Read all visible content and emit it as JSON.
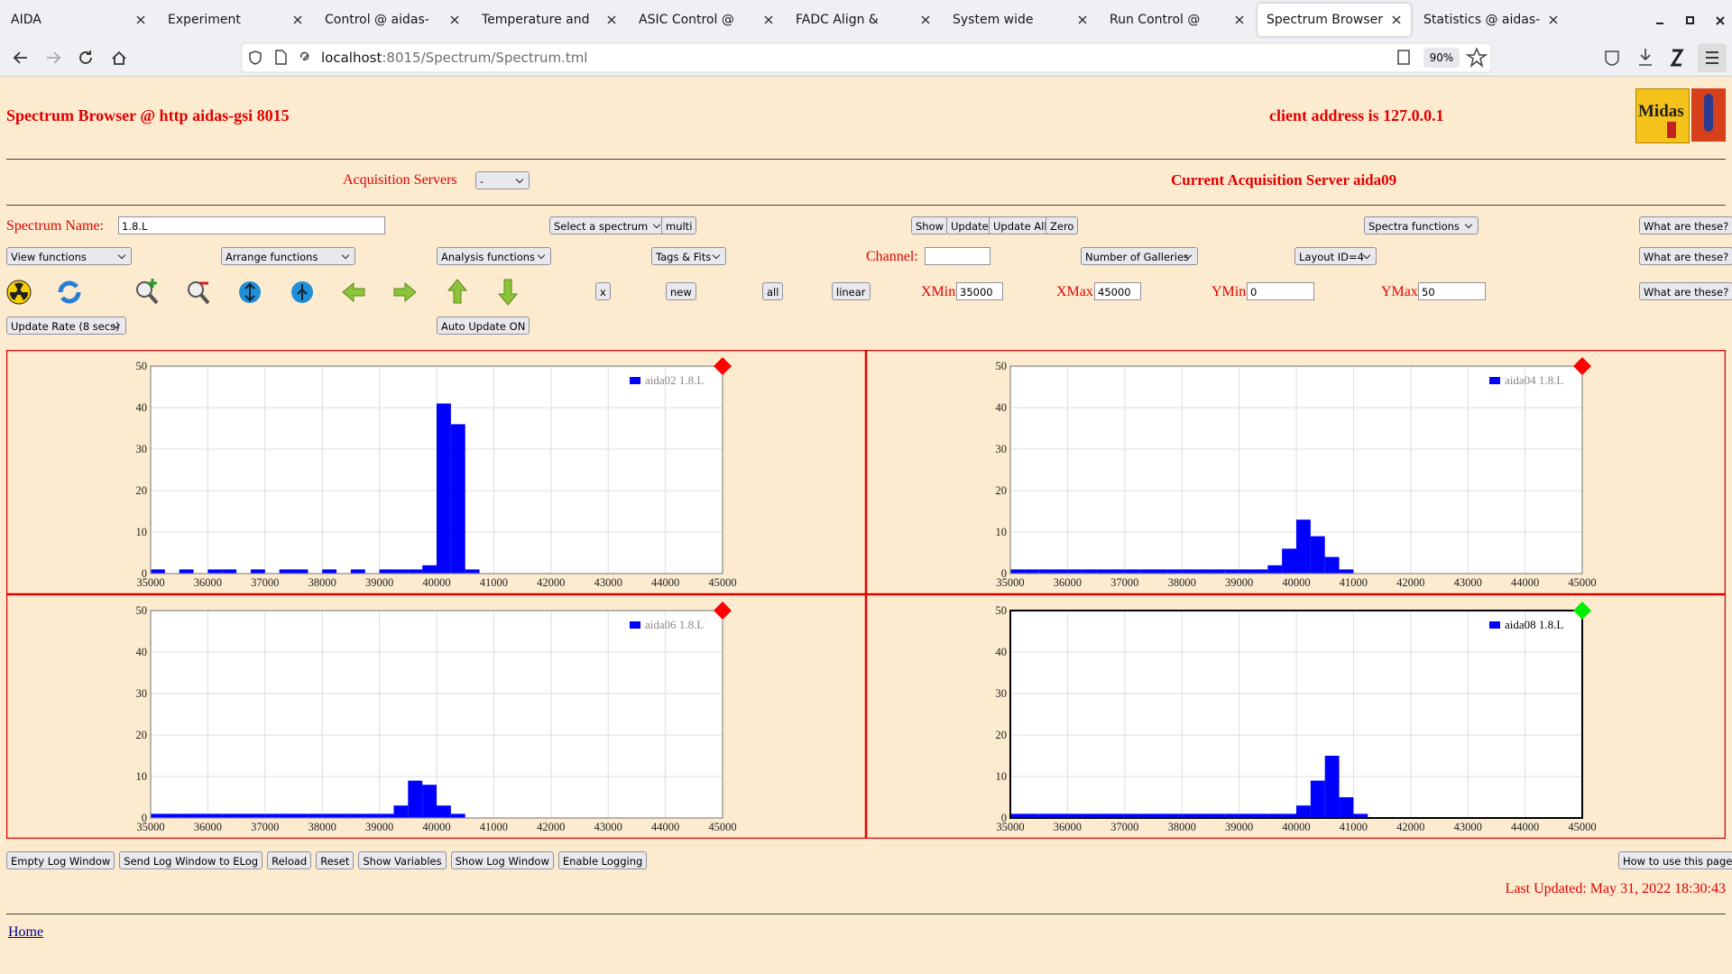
{
  "browser": {
    "tabs": [
      "AIDA",
      "Experiment Control @",
      "Control @ aidas-gsi",
      "Temperature and stat",
      "ASIC Control @ aida",
      "FADC Align & Contro",
      "System wide Checks",
      "Run Control @ aidas-",
      "Spectrum Browser @",
      "Statistics @ aidas-gsi"
    ],
    "active_tab": 8,
    "url_host": "localhost",
    "url_path": ":8015/Spectrum/Spectrum.tml",
    "zoom": "90%"
  },
  "header": {
    "title": "Spectrum Browser @ http aidas-gsi 8015",
    "client": "client address is 127.0.0.1",
    "logo": "Midas"
  },
  "servers": {
    "label": "Acquisition Servers",
    "selected": "-",
    "current": "Current Acquisition Server aida09"
  },
  "controls": {
    "spectrum_name_label": "Spectrum Name:",
    "spectrum_name": "1.8.L",
    "select_spectrum": "Select a spectrum",
    "multi": "multi",
    "show": "Show",
    "update": "Update",
    "update_all": "Update All",
    "zero": "Zero",
    "spectra_functions": "Spectra functions",
    "help": [
      "What are these?",
      "What are these?",
      "What are these?"
    ],
    "view_functions": "View functions",
    "arrange_functions": "Arrange functions",
    "analysis_functions": "Analysis functions",
    "tags_fits": "Tags & Fits",
    "channel_label": "Channel:",
    "galleries": "Number of Galleries",
    "layout": "Layout ID=4",
    "x_button": "x",
    "new": "new",
    "all": "all",
    "linear": "linear",
    "xmin_label": "XMin",
    "xmin": "35000",
    "xmax_label": "XMax",
    "xmax": "45000",
    "ymin_label": "YMin",
    "ymin": "0",
    "ymax_label": "YMax",
    "ymax": "50",
    "update_rate": "Update Rate (8 secs)",
    "auto_update": "Auto Update ON"
  },
  "chart_data": [
    {
      "type": "histogram",
      "bins": [
        35000,
        35250,
        35500,
        35750,
        36000,
        36250,
        36500,
        36750,
        37000,
        37250,
        37500,
        37750,
        38000,
        38250,
        38500,
        38750,
        39000,
        39250,
        39500,
        39750,
        40000,
        40250,
        40500,
        40750,
        41000,
        41250,
        41500,
        41750,
        42000,
        42250,
        42500,
        42750,
        43000,
        43250,
        43500,
        43750,
        44000,
        44250,
        44500,
        44750,
        45000
      ],
      "series": [
        {
          "name": "aida02 1.8.L",
          "color": "#0000ff",
          "values": [
            1,
            0,
            1,
            0,
            1,
            1,
            0,
            1,
            0,
            1,
            1,
            0,
            1,
            0,
            1,
            0,
            1,
            1,
            1,
            2,
            41,
            36,
            1,
            0,
            0,
            0,
            0,
            0,
            0,
            0,
            0,
            0,
            0,
            0,
            0,
            0,
            0,
            0,
            0,
            0
          ]
        }
      ],
      "xlim": [
        35000,
        45000
      ],
      "ylim": [
        0,
        50
      ],
      "xticks": [
        35000,
        36000,
        37000,
        38000,
        39000,
        40000,
        41000,
        42000,
        43000,
        44000,
        45000
      ],
      "yticks": [
        0,
        10,
        20,
        30,
        40,
        50
      ],
      "grid": true,
      "legend": "upper right",
      "status_color": "#ff0000",
      "frame_color": "#888888"
    },
    {
      "type": "histogram",
      "bins": [
        35000,
        35250,
        35500,
        35750,
        36000,
        36250,
        36500,
        36750,
        37000,
        37250,
        37500,
        37750,
        38000,
        38250,
        38500,
        38750,
        39000,
        39250,
        39500,
        39750,
        40000,
        40250,
        40500,
        40750,
        41000,
        41250,
        41500,
        41750,
        42000,
        42250,
        42500,
        42750,
        43000,
        43250,
        43500,
        43750,
        44000,
        44250,
        44500,
        44750,
        45000
      ],
      "series": [
        {
          "name": "aida04 1.8.L",
          "color": "#0000ff",
          "values": [
            1,
            1,
            1,
            1,
            1,
            1,
            1,
            1,
            1,
            1,
            1,
            1,
            1,
            1,
            1,
            1,
            1,
            1,
            2,
            6,
            13,
            9,
            4,
            1,
            0,
            0,
            0,
            0,
            0,
            0,
            0,
            0,
            0,
            0,
            0,
            0,
            0,
            0,
            0,
            0
          ]
        }
      ],
      "xlim": [
        35000,
        45000
      ],
      "ylim": [
        0,
        50
      ],
      "xticks": [
        35000,
        36000,
        37000,
        38000,
        39000,
        40000,
        41000,
        42000,
        43000,
        44000,
        45000
      ],
      "yticks": [
        0,
        10,
        20,
        30,
        40,
        50
      ],
      "grid": true,
      "legend": "upper right",
      "status_color": "#ff0000",
      "frame_color": "#888888"
    },
    {
      "type": "histogram",
      "bins": [
        35000,
        35250,
        35500,
        35750,
        36000,
        36250,
        36500,
        36750,
        37000,
        37250,
        37500,
        37750,
        38000,
        38250,
        38500,
        38750,
        39000,
        39250,
        39500,
        39750,
        40000,
        40250,
        40500,
        40750,
        41000,
        41250,
        41500,
        41750,
        42000,
        42250,
        42500,
        42750,
        43000,
        43250,
        43500,
        43750,
        44000,
        44250,
        44500,
        44750,
        45000
      ],
      "series": [
        {
          "name": "aida06 1.8.L",
          "color": "#0000ff",
          "values": [
            1,
            1,
            1,
            1,
            1,
            1,
            1,
            1,
            1,
            1,
            1,
            1,
            1,
            1,
            1,
            1,
            1,
            3,
            9,
            8,
            3,
            1,
            0,
            0,
            0,
            0,
            0,
            0,
            0,
            0,
            0,
            0,
            0,
            0,
            0,
            0,
            0,
            0,
            0,
            0
          ]
        }
      ],
      "xlim": [
        35000,
        45000
      ],
      "ylim": [
        0,
        50
      ],
      "xticks": [
        35000,
        36000,
        37000,
        38000,
        39000,
        40000,
        41000,
        42000,
        43000,
        44000,
        45000
      ],
      "yticks": [
        0,
        10,
        20,
        30,
        40,
        50
      ],
      "grid": true,
      "legend": "upper right",
      "status_color": "#ff0000",
      "frame_color": "#888888"
    },
    {
      "type": "histogram",
      "bins": [
        35000,
        35250,
        35500,
        35750,
        36000,
        36250,
        36500,
        36750,
        37000,
        37250,
        37500,
        37750,
        38000,
        38250,
        38500,
        38750,
        39000,
        39250,
        39500,
        39750,
        40000,
        40250,
        40500,
        40750,
        41000,
        41250,
        41500,
        41750,
        42000,
        42250,
        42500,
        42750,
        43000,
        43250,
        43500,
        43750,
        44000,
        44250,
        44500,
        44750,
        45000
      ],
      "series": [
        {
          "name": "aida08 1.8.L",
          "color": "#0000ff",
          "values": [
            1,
            1,
            1,
            1,
            1,
            1,
            1,
            1,
            1,
            1,
            1,
            1,
            1,
            1,
            1,
            1,
            1,
            1,
            1,
            1,
            3,
            9,
            15,
            5,
            1,
            0,
            0,
            0,
            0,
            0,
            0,
            0,
            0,
            0,
            0,
            0,
            0,
            0,
            0,
            0
          ]
        }
      ],
      "xlim": [
        35000,
        45000
      ],
      "ylim": [
        0,
        50
      ],
      "xticks": [
        35000,
        36000,
        37000,
        38000,
        39000,
        40000,
        41000,
        42000,
        43000,
        44000,
        45000
      ],
      "yticks": [
        0,
        10,
        20,
        30,
        40,
        50
      ],
      "grid": true,
      "legend": "upper right",
      "status_color": "#00ee00",
      "frame_color": "#000000"
    }
  ],
  "footer": {
    "buttons": [
      "Empty Log Window",
      "Send Log Window to ELog",
      "Reload",
      "Reset",
      "Show Variables",
      "Show Log Window",
      "Enable Logging"
    ],
    "help_page": "How to use this page",
    "last_updated": "Last Updated: May 31, 2022 18:30:43",
    "home": "Home"
  }
}
